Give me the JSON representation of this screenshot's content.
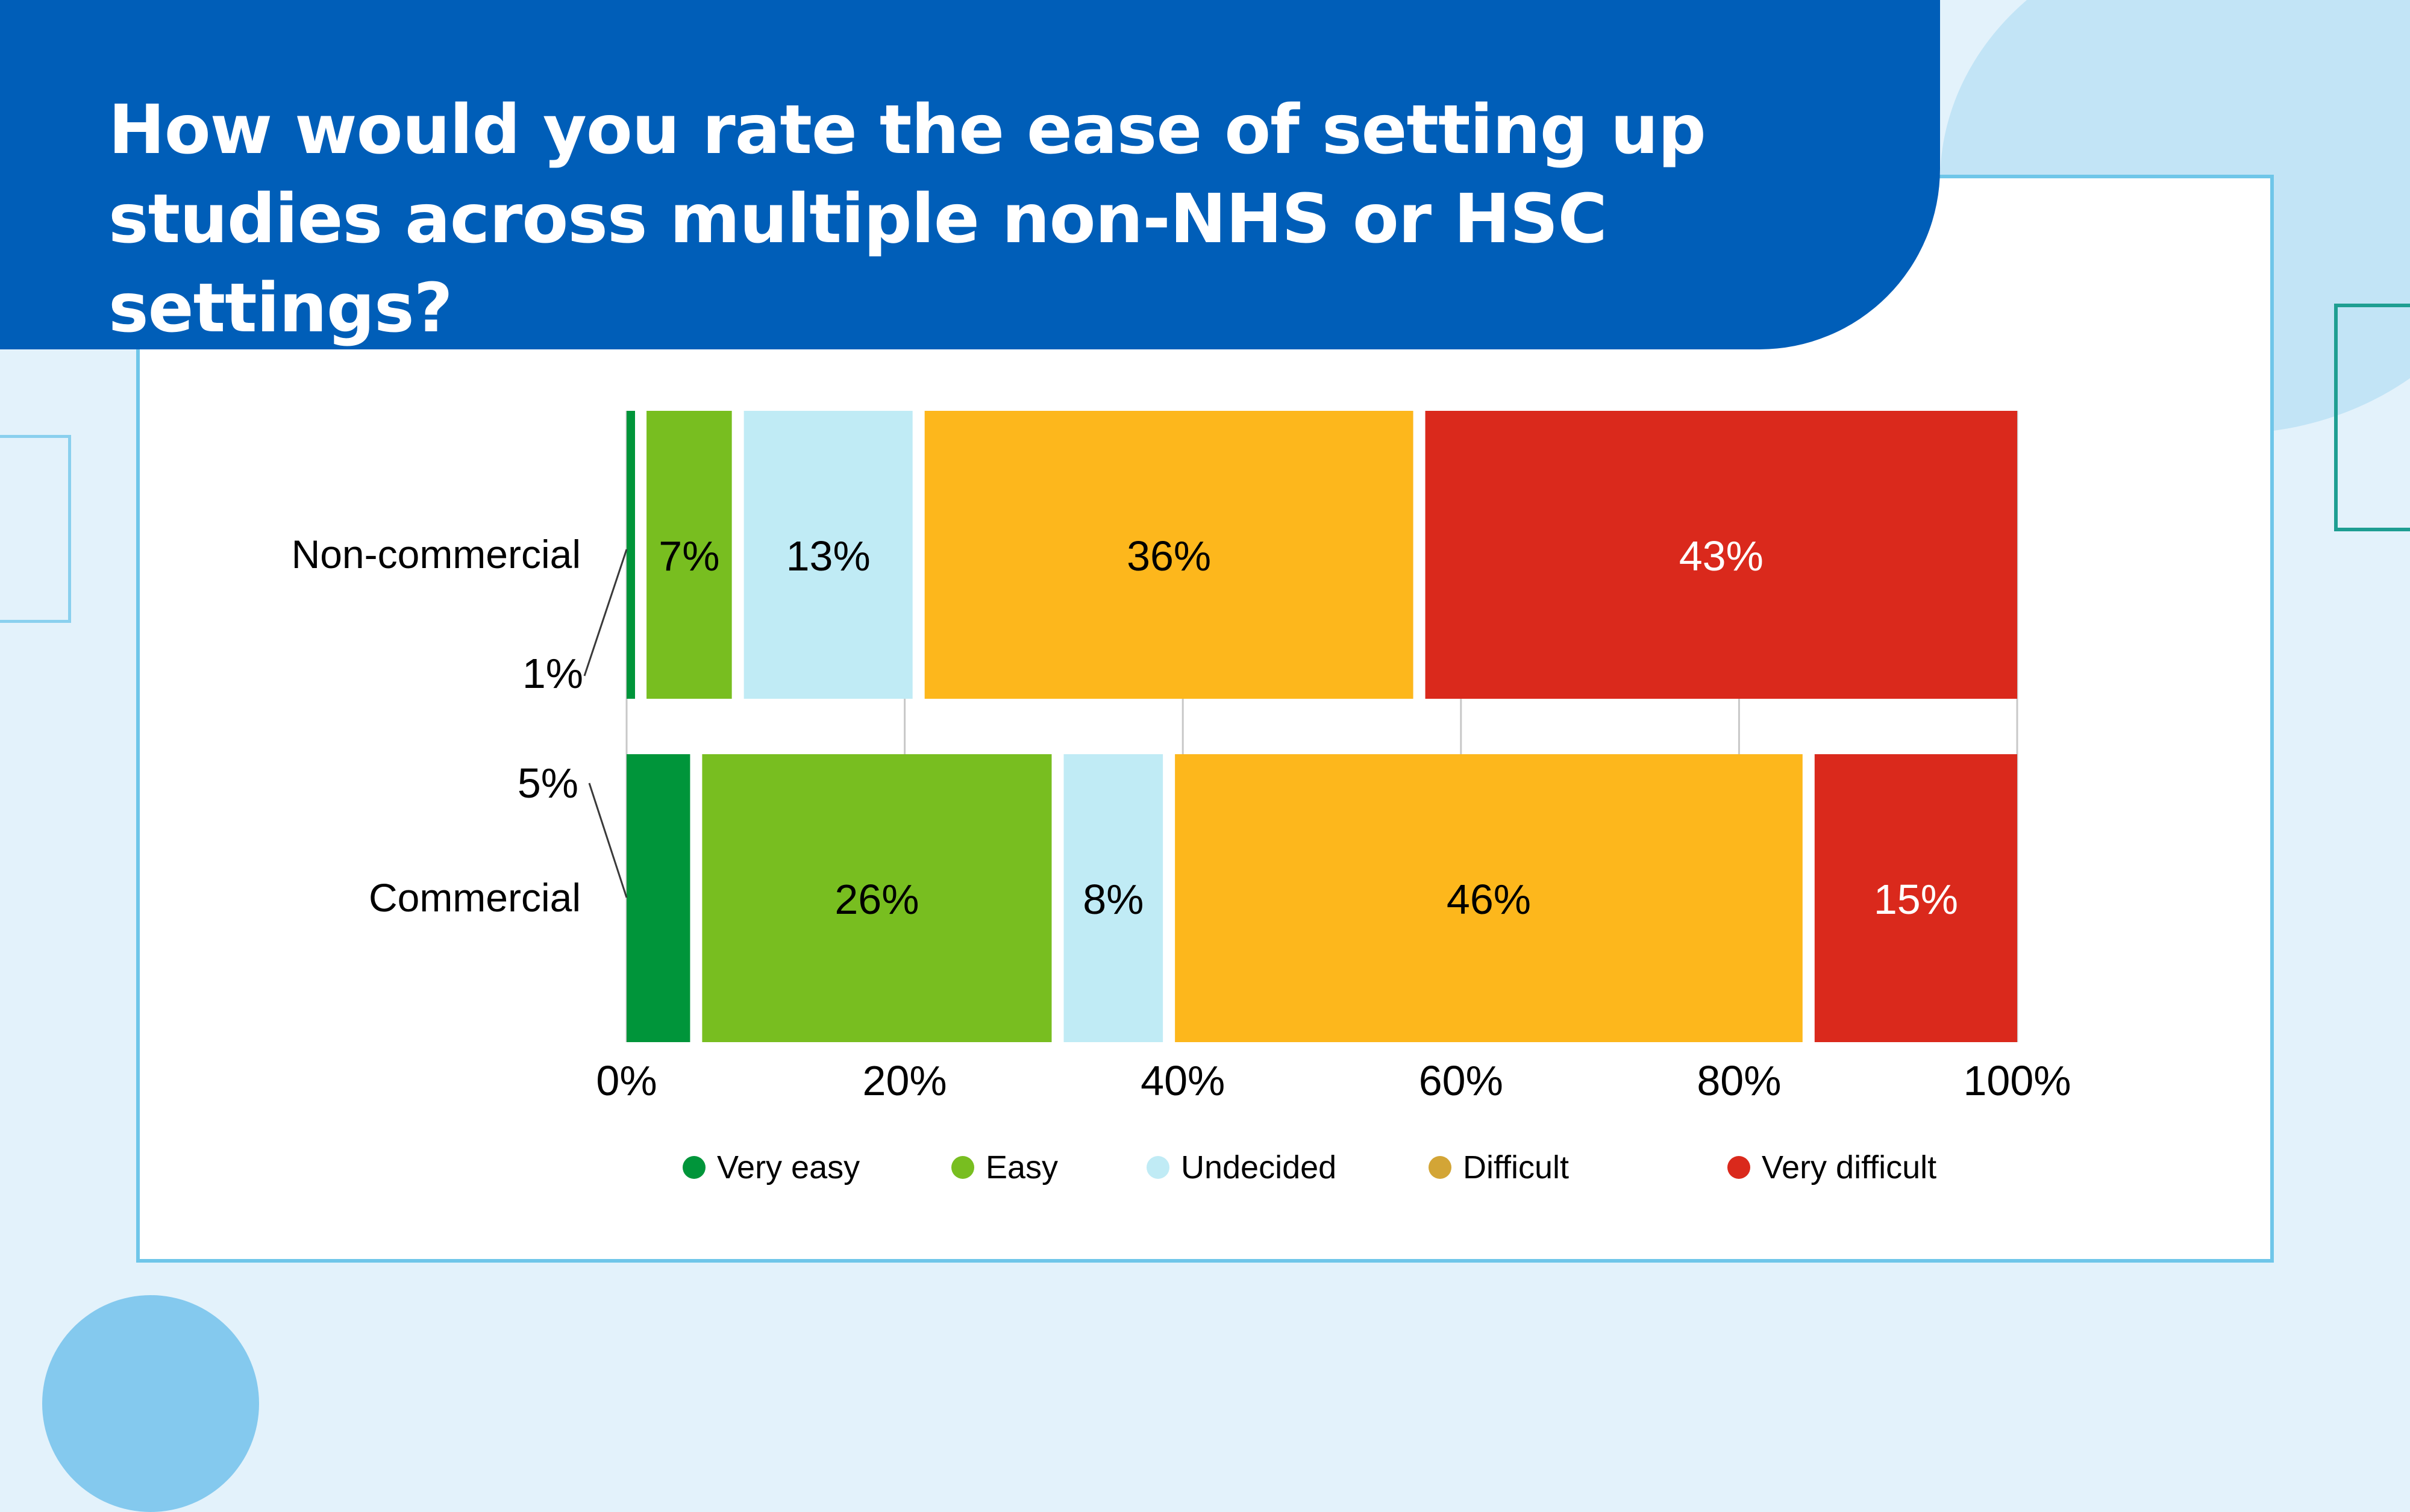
{
  "title": "How would you rate the ease of setting up studies across multiple non-NHS or HSC settings?",
  "chart_data": {
    "type": "bar",
    "orientation": "horizontal",
    "stacked": true,
    "categories": [
      "Non-commercial",
      "Commercial"
    ],
    "series": [
      {
        "name": "Very easy",
        "color": "#00953a",
        "values": [
          1,
          5
        ],
        "labels": [
          "1%",
          "5%"
        ]
      },
      {
        "name": "Easy",
        "color": "#78be20",
        "values": [
          7,
          26
        ],
        "labels": [
          "7%",
          "26%"
        ]
      },
      {
        "name": "Undecided",
        "color": "#c0ebf5",
        "values": [
          13,
          8
        ],
        "labels": [
          "13%",
          "8%"
        ]
      },
      {
        "name": "Difficult",
        "color": "#fdb71c",
        "legend_color": "#d3a536",
        "values": [
          36,
          46
        ],
        "labels": [
          "36%",
          "46%"
        ]
      },
      {
        "name": "Very difficult",
        "color": "#da291c",
        "values": [
          43,
          15
        ],
        "labels": [
          "43%",
          "15%"
        ]
      }
    ],
    "xlim": [
      0,
      100
    ],
    "xticks": [
      "0%",
      "20%",
      "40%",
      "60%",
      "80%",
      "100%"
    ],
    "grid": true,
    "legend_position": "bottom"
  }
}
